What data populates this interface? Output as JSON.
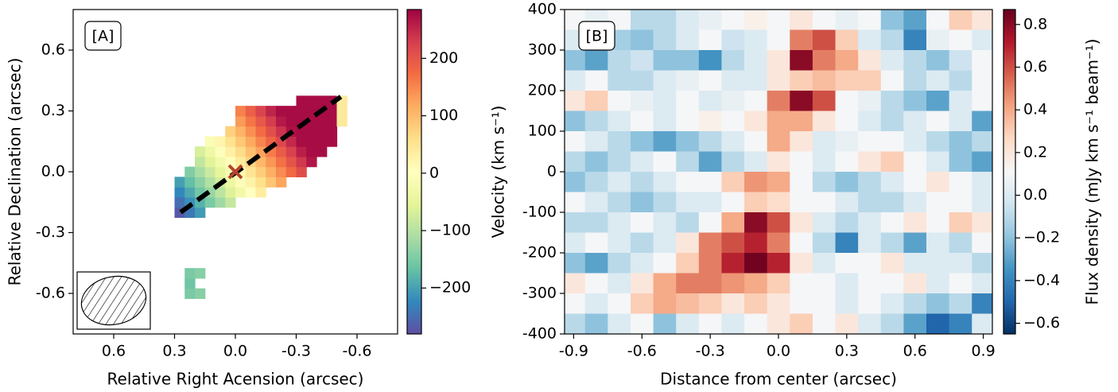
{
  "chart_data": [
    {
      "type": "heatmap",
      "label": "[A]",
      "colormap": "Spectral_r",
      "xlabel": "Relative Right Acension (arcsec)",
      "ylabel": "Relative Declination (arcsec)",
      "xlim": [
        0.8,
        -0.8
      ],
      "ylim": [
        -0.8,
        0.8
      ],
      "xticks": [
        0.6,
        0.3,
        {
          "value": 0,
          "label": "0.0"
        },
        -0.3,
        -0.6
      ],
      "yticks": [
        -0.6,
        -0.3,
        {
          "value": 0,
          "label": "0.0"
        },
        0.3,
        0.6
      ],
      "clim": [
        -280,
        285
      ],
      "cticks": [
        {
          "value": -200,
          "label": "−200"
        },
        {
          "value": -100,
          "label": "−100"
        },
        0,
        100,
        200
      ],
      "x": [
        0.275,
        0.225,
        0.175,
        0.125,
        0.075,
        0.025,
        -0.025,
        -0.075,
        -0.125,
        -0.175,
        -0.225,
        -0.275,
        -0.325,
        -0.375,
        -0.425,
        -0.475,
        -0.525
      ],
      "y": [
        -0.6,
        -0.55,
        -0.5,
        -0.45,
        -0.4,
        -0.35,
        -0.3,
        -0.25,
        -0.2,
        -0.15,
        -0.1,
        -0.05,
        0,
        0.05,
        0.1,
        0.15,
        0.2,
        0.25,
        0.3,
        0.35
      ],
      "values": [
        [
          null,
          -150,
          -140,
          null,
          null,
          null,
          null,
          null,
          null,
          null,
          null,
          null,
          null,
          null,
          null,
          null,
          null
        ],
        [
          null,
          -160,
          null,
          null,
          null,
          null,
          null,
          null,
          null,
          null,
          null,
          null,
          null,
          null,
          null,
          null,
          null
        ],
        [
          null,
          -150,
          -140,
          null,
          null,
          null,
          null,
          null,
          null,
          null,
          null,
          null,
          null,
          null,
          null,
          null,
          null
        ],
        [
          null,
          null,
          null,
          null,
          null,
          null,
          null,
          null,
          null,
          null,
          null,
          null,
          null,
          null,
          null,
          null,
          null
        ],
        [
          null,
          null,
          null,
          null,
          null,
          null,
          null,
          null,
          null,
          null,
          null,
          null,
          null,
          null,
          null,
          null,
          null
        ],
        [
          null,
          null,
          null,
          null,
          null,
          null,
          null,
          null,
          null,
          null,
          null,
          null,
          null,
          null,
          null,
          null,
          null
        ],
        [
          null,
          null,
          null,
          null,
          null,
          null,
          null,
          null,
          null,
          null,
          null,
          null,
          null,
          null,
          null,
          null,
          null
        ],
        [
          null,
          null,
          null,
          null,
          null,
          null,
          null,
          null,
          null,
          null,
          null,
          null,
          null,
          null,
          null,
          null,
          null
        ],
        [
          -270,
          -239,
          -206,
          null,
          null,
          null,
          null,
          null,
          null,
          null,
          null,
          null,
          null,
          null,
          null,
          null,
          null
        ],
        [
          -248,
          -216,
          -183,
          -151,
          -119,
          -86,
          null,
          null,
          null,
          null,
          null,
          null,
          null,
          null,
          null,
          null,
          null
        ],
        [
          -224,
          -192,
          -159,
          -127,
          -95,
          -62,
          -30,
          3,
          35,
          null,
          null,
          null,
          null,
          null,
          null,
          null,
          null
        ],
        [
          -201,
          -169,
          -136,
          -104,
          -72,
          -39,
          -7,
          26,
          58,
          90,
          123,
          null,
          null,
          null,
          null,
          null,
          null
        ],
        [
          null,
          -146,
          -113,
          -81,
          -49,
          -16,
          16,
          49,
          81,
          113,
          146,
          178,
          211,
          null,
          null,
          null,
          null
        ],
        [
          null,
          null,
          -90,
          -58,
          -26,
          7,
          39,
          72,
          104,
          136,
          169,
          201,
          234,
          266,
          null,
          null,
          null
        ],
        [
          null,
          null,
          -67,
          -35,
          -3,
          30,
          62,
          95,
          127,
          159,
          192,
          224,
          257,
          275,
          275,
          null,
          null
        ],
        [
          null,
          null,
          null,
          -11,
          21,
          54,
          86,
          119,
          151,
          183,
          216,
          248,
          275,
          275,
          275,
          275,
          null
        ],
        [
          null,
          null,
          null,
          null,
          null,
          77,
          109,
          142,
          174,
          206,
          239,
          271,
          275,
          275,
          275,
          275,
          null
        ],
        [
          null,
          null,
          null,
          null,
          null,
          null,
          132,
          165,
          197,
          229,
          262,
          275,
          275,
          275,
          275,
          275,
          40
        ],
        [
          null,
          null,
          null,
          null,
          null,
          null,
          155,
          188,
          220,
          252,
          275,
          275,
          275,
          275,
          275,
          275,
          40
        ],
        [
          null,
          null,
          null,
          null,
          null,
          null,
          null,
          null,
          null,
          null,
          null,
          null,
          275,
          275,
          275,
          275,
          40
        ]
      ],
      "major_axis": {
        "x": [
          0.27,
          -0.52
        ],
        "y": [
          -0.2,
          0.37
        ]
      },
      "center": {
        "x": 0,
        "y": 0
      }
    },
    {
      "type": "heatmap",
      "label": "[B]",
      "colormap": "RdBu_r",
      "xlabel": "Distance from center (arcsec)",
      "ylabel": "Velocity (km s⁻¹)",
      "clabel": "Flux density (mJy km s⁻¹ beam⁻¹)",
      "xlim": [
        -0.94,
        0.94
      ],
      "ylim": [
        -400,
        400
      ],
      "xticks": [
        -0.9,
        -0.6,
        -0.3,
        {
          "value": 0,
          "label": "0.0"
        },
        0.3,
        0.6,
        0.9
      ],
      "yticks": [
        -400,
        -300,
        -200,
        -100,
        0,
        100,
        200,
        300,
        400
      ],
      "clim": [
        -0.65,
        0.87
      ],
      "cticks": [
        {
          "value": -0.6,
          "label": "−0.6"
        },
        {
          "value": -0.4,
          "label": "−0.4"
        },
        {
          "value": -0.2,
          "label": "−0.2"
        },
        {
          "value": 0,
          "label": "0.0"
        },
        0.2,
        0.4,
        0.6,
        0.8
      ],
      "x": [
        -0.9,
        -0.8,
        -0.7,
        -0.6,
        -0.5,
        -0.4,
        -0.3,
        -0.2,
        -0.1,
        0,
        0.1,
        0.2,
        0.3,
        0.4,
        0.5,
        0.6,
        0.7,
        0.8,
        0.9
      ],
      "y": [
        375,
        325,
        275,
        225,
        175,
        125,
        75,
        25,
        -25,
        -75,
        -125,
        -175,
        -225,
        -275,
        -325,
        -375
      ],
      "values": [
        [
          0.1,
          0.05,
          0.1,
          -0.1,
          -0.1,
          0.0,
          0.05,
          0.1,
          0.15,
          0.1,
          0.2,
          0.1,
          0.05,
          0.1,
          -0.2,
          -0.3,
          0.1,
          0.3,
          0.2
        ],
        [
          0.0,
          -0.1,
          -0.15,
          -0.2,
          -0.1,
          0.0,
          0.1,
          -0.05,
          0.0,
          0.1,
          0.5,
          0.6,
          0.3,
          0.0,
          -0.1,
          -0.4,
          0.05,
          0.1,
          0.0
        ],
        [
          -0.2,
          -0.3,
          -0.1,
          -0.05,
          -0.2,
          -0.2,
          -0.35,
          -0.1,
          0.0,
          0.2,
          0.8,
          0.5,
          0.4,
          0.2,
          0.0,
          -0.1,
          -0.2,
          -0.05,
          0.1
        ],
        [
          0.0,
          0.1,
          -0.1,
          -0.1,
          0.0,
          0.05,
          0.1,
          0.0,
          0.0,
          0.2,
          0.3,
          0.35,
          0.3,
          0.3,
          0.1,
          -0.1,
          0.0,
          -0.1,
          0.1
        ],
        [
          0.2,
          0.3,
          0.1,
          0.05,
          0.0,
          0.1,
          0.0,
          0.05,
          0.1,
          0.5,
          0.8,
          0.6,
          0.1,
          0.05,
          -0.1,
          -0.2,
          -0.3,
          0.0,
          0.1
        ],
        [
          -0.2,
          -0.1,
          0.0,
          0.1,
          0.0,
          0.1,
          0.15,
          0.1,
          0.2,
          0.4,
          0.4,
          0.2,
          0.1,
          0.0,
          -0.1,
          0.0,
          0.1,
          0.0,
          -0.3
        ],
        [
          0.1,
          0.0,
          -0.1,
          -0.2,
          -0.3,
          -0.2,
          -0.1,
          0.0,
          0.1,
          0.4,
          0.2,
          0.0,
          0.05,
          0.1,
          0.1,
          0.0,
          -0.1,
          -0.2,
          -0.1
        ],
        [
          -0.1,
          -0.2,
          -0.1,
          0.0,
          0.1,
          -0.1,
          -0.3,
          -0.1,
          0.0,
          0.2,
          0.1,
          0.0,
          0.1,
          0.2,
          0.3,
          0.1,
          0.0,
          -0.2,
          -0.3
        ],
        [
          -0.2,
          -0.1,
          0.0,
          -0.1,
          0.0,
          0.1,
          0.1,
          0.3,
          0.45,
          0.4,
          0.1,
          -0.1,
          -0.2,
          -0.1,
          0.0,
          0.1,
          0.2,
          0.1,
          0.0
        ],
        [
          0.1,
          0.0,
          -0.1,
          -0.2,
          -0.1,
          0.0,
          0.0,
          0.1,
          0.3,
          0.25,
          0.1,
          0.1,
          0.0,
          -0.1,
          -0.1,
          0.0,
          0.1,
          0.1,
          0.0
        ],
        [
          -0.1,
          -0.1,
          0.0,
          0.1,
          0.0,
          -0.1,
          0.1,
          0.4,
          0.8,
          0.6,
          0.2,
          0.0,
          -0.1,
          0.0,
          0.1,
          0.2,
          0.1,
          0.3,
          0.2
        ],
        [
          0.0,
          0.1,
          0.0,
          -0.1,
          0.0,
          0.2,
          0.5,
          0.6,
          0.7,
          0.5,
          0.1,
          -0.1,
          -0.4,
          0.0,
          -0.1,
          -0.3,
          0.0,
          -0.1,
          0.1
        ],
        [
          -0.2,
          -0.3,
          -0.1,
          0.0,
          0.1,
          0.3,
          0.5,
          0.7,
          0.85,
          0.7,
          0.2,
          0.0,
          0.1,
          0.1,
          0.2,
          0.0,
          0.0,
          0.0,
          -0.1
        ],
        [
          0.2,
          0.1,
          0.0,
          0.2,
          0.4,
          0.5,
          0.5,
          0.45,
          0.4,
          0.3,
          0.1,
          0.1,
          0.0,
          0.1,
          0.1,
          0.2,
          0.0,
          0.1,
          0.0
        ],
        [
          0.1,
          0.0,
          0.1,
          0.3,
          0.4,
          0.35,
          0.3,
          0.2,
          0.3,
          0.2,
          0.1,
          0.1,
          0.0,
          0.1,
          0.0,
          -0.1,
          -0.2,
          -0.1,
          -0.4
        ],
        [
          -0.1,
          -0.2,
          0.0,
          0.1,
          -0.2,
          0.0,
          0.1,
          0.0,
          0.1,
          0.2,
          0.3,
          0.1,
          0.2,
          0.0,
          -0.1,
          -0.3,
          -0.5,
          -0.4,
          0.0
        ]
      ]
    }
  ]
}
